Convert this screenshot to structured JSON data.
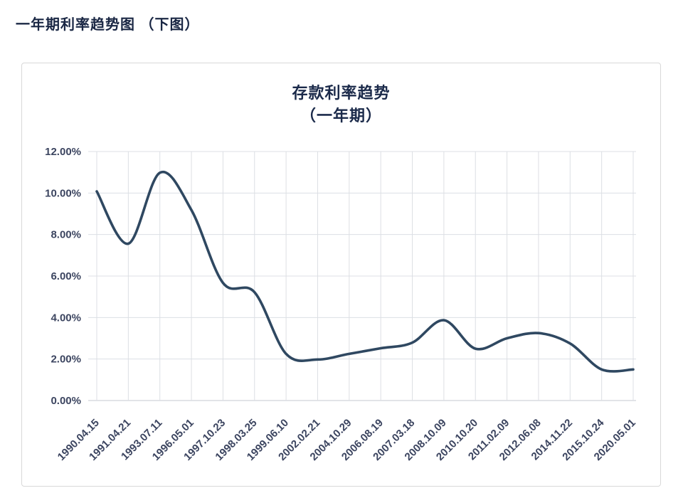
{
  "page": {
    "title": "一年期利率趋势图 （下图）"
  },
  "chart_data": {
    "type": "line",
    "title": "存款利率趋势",
    "subtitle": "（一年期）",
    "categories": [
      "1990.04.15",
      "1991.04.21",
      "1993.07.11",
      "1996.05.01",
      "1997.10.23",
      "1998.03.25",
      "1999.06.10",
      "2002.02.21",
      "2004.10.29",
      "2006.08.19",
      "2007.03.18",
      "2008.10.09",
      "2010.10.20",
      "2011.02.09",
      "2012.06.08",
      "2014.11.22",
      "2015.10.24",
      "2020.05.01"
    ],
    "values": [
      10.08,
      7.56,
      10.98,
      9.18,
      5.67,
      5.22,
      2.25,
      1.98,
      2.25,
      2.52,
      2.79,
      3.87,
      2.5,
      3.0,
      3.25,
      2.75,
      1.5,
      1.5
    ],
    "ylim": [
      0,
      12
    ],
    "y_tick_step": 2,
    "y_tick_suffix": "%",
    "grid": true,
    "smooth": true,
    "legend": "none",
    "line_color": "#2f4861",
    "grid_color": "#dcdfe4",
    "axis_label_color": "#3c4560",
    "title_color": "#1b2a4a"
  }
}
